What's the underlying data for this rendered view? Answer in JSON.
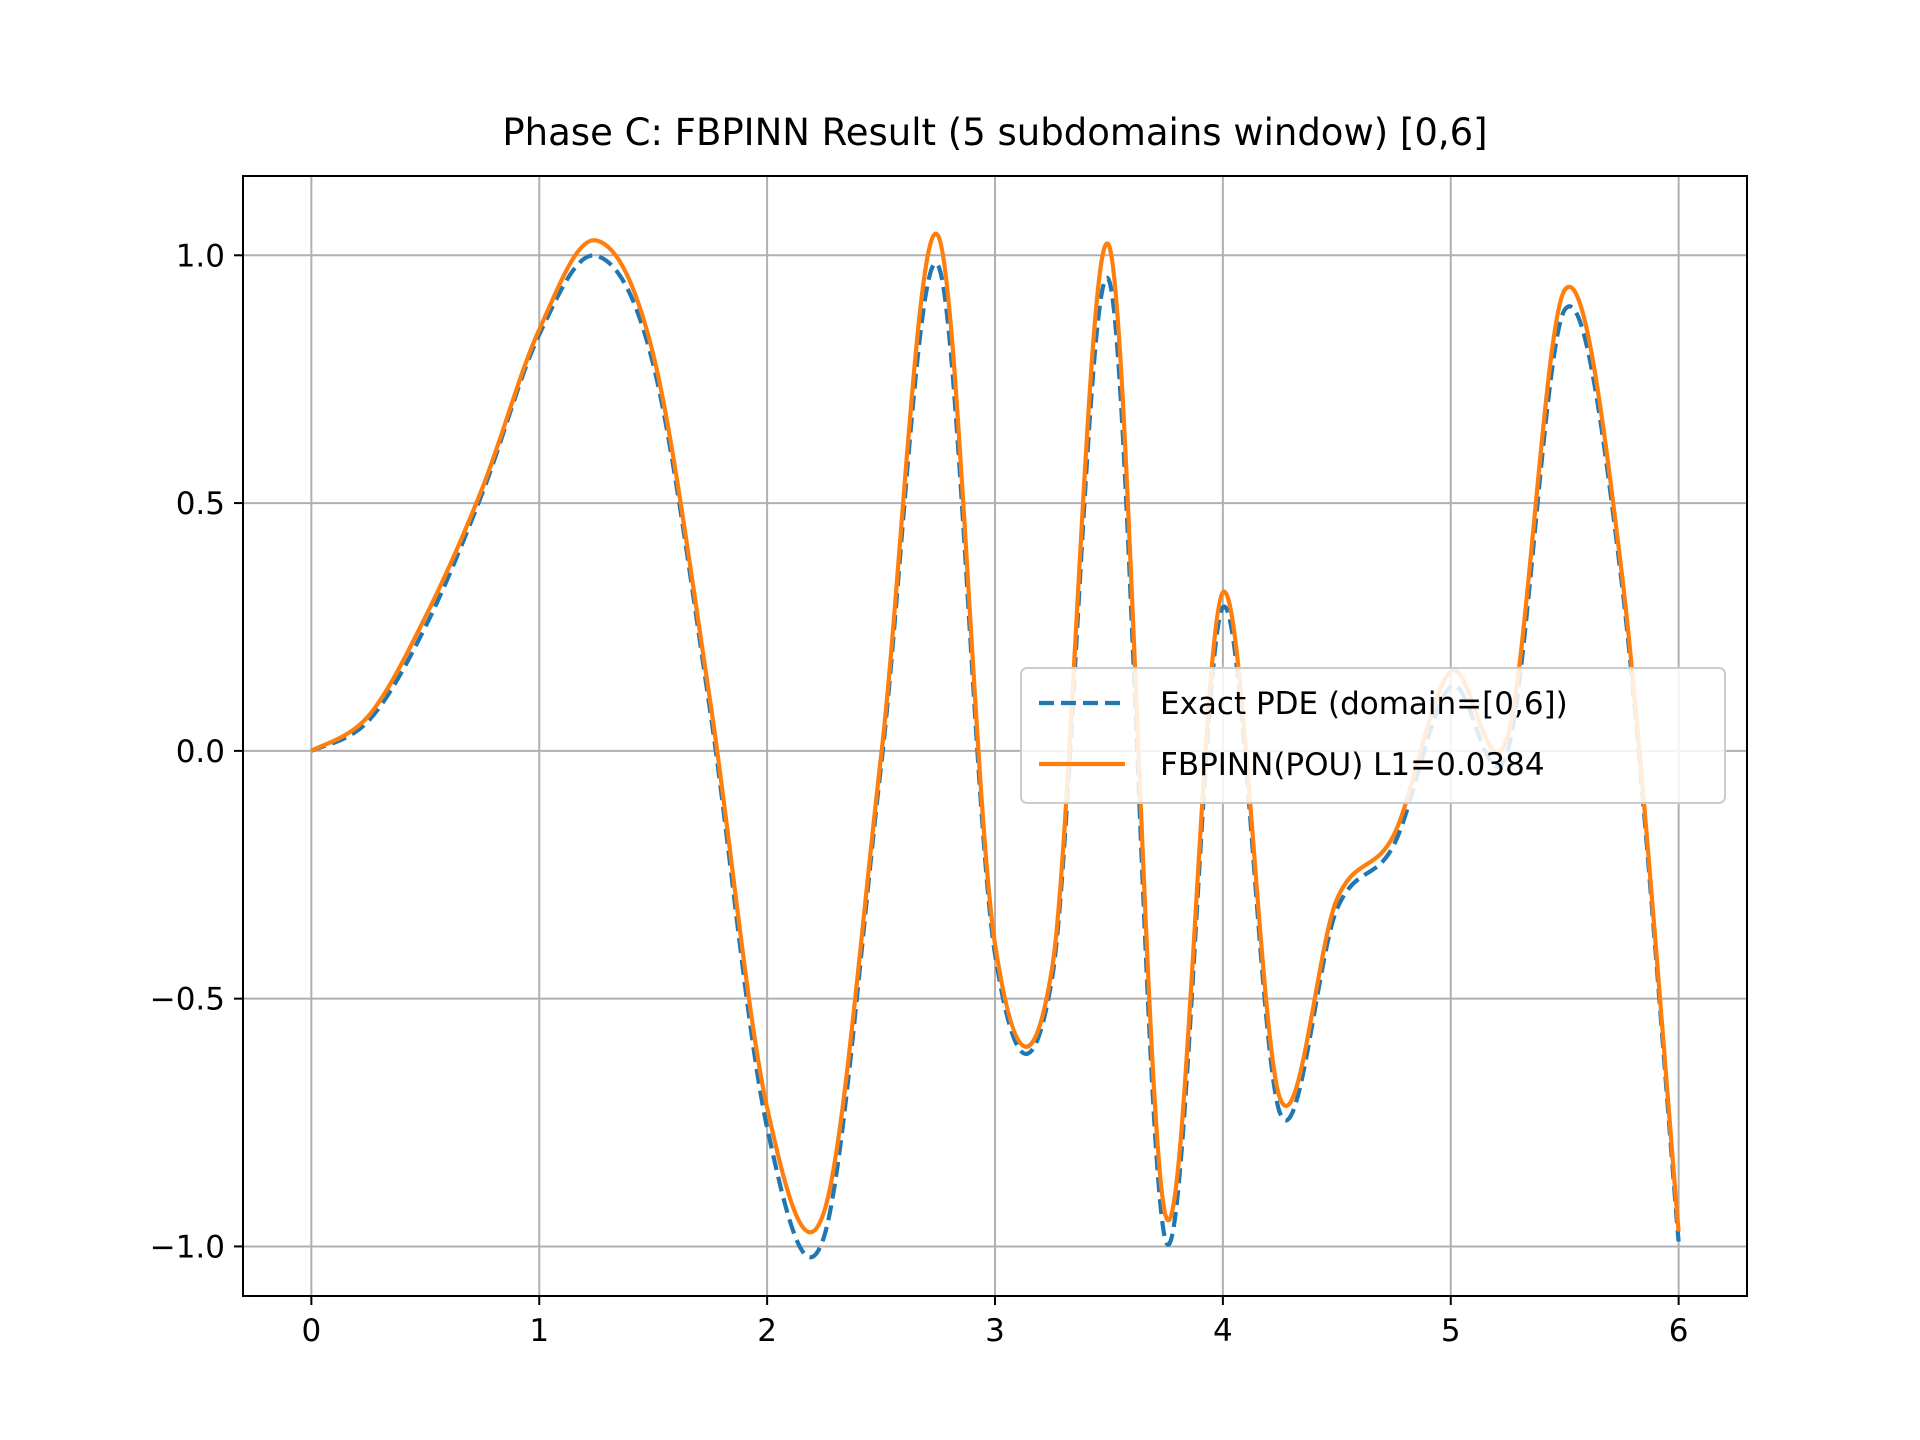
{
  "chart_data": {
    "type": "line",
    "title": "Phase C: FBPINN Result (5 subdomains window) [0,6]",
    "xlabel": "",
    "ylabel": "",
    "xlim": [
      -0.3,
      6.3
    ],
    "ylim": [
      -1.1,
      1.16
    ],
    "xticks": [
      0,
      1,
      2,
      3,
      4,
      5,
      6
    ],
    "xtick_labels": [
      "0",
      "1",
      "2",
      "3",
      "4",
      "5",
      "6"
    ],
    "yticks": [
      -1.0,
      -0.5,
      0.0,
      0.5,
      1.0
    ],
    "ytick_labels": [
      "−1.0",
      "−0.5",
      "0.0",
      "0.5",
      "1.0"
    ],
    "grid": true,
    "legend_position": "center-right",
    "x": [
      0,
      0.25,
      0.5,
      0.75,
      1.0,
      1.25,
      1.5,
      1.75,
      2.0,
      2.25,
      2.5,
      2.75,
      3.0,
      3.25,
      3.5,
      3.75,
      4.0,
      4.25,
      4.5,
      4.75,
      5.0,
      5.25,
      5.5,
      5.75,
      6.0
    ],
    "series": [
      {
        "name": "Exact PDE (domain=[0,6])",
        "style": "dashed",
        "color": "#1f77b4",
        "values": [
          0.0,
          0.06,
          0.25,
          0.52,
          0.84,
          0.999,
          0.78,
          0.08,
          -0.76,
          -0.98,
          -0.03,
          0.98,
          -0.41,
          -0.46,
          0.95,
          -0.99,
          0.29,
          -0.73,
          -0.32,
          -0.19,
          0.13,
          0.0,
          0.89,
          0.34,
          -0.99
        ]
      },
      {
        "name": "FBPINN(POU) L1=0.0384",
        "style": "solid",
        "color": "#ff7f0e",
        "values": [
          0.0,
          0.07,
          0.27,
          0.53,
          0.85,
          1.03,
          0.8,
          0.1,
          -0.72,
          -0.93,
          -0.01,
          1.04,
          -0.39,
          -0.44,
          1.02,
          -0.94,
          0.32,
          -0.7,
          -0.3,
          -0.17,
          0.16,
          0.03,
          0.93,
          0.36,
          -0.97
        ]
      }
    ]
  }
}
